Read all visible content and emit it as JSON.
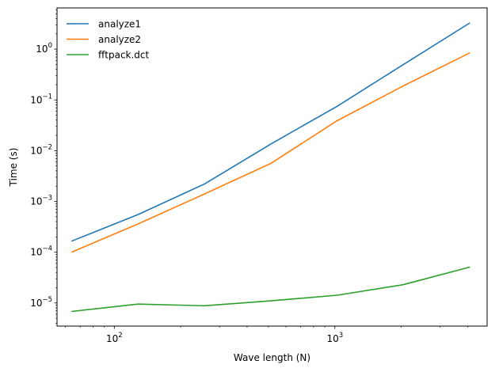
{
  "chart_data": {
    "type": "line",
    "title": "",
    "xlabel": "Wave length (N)",
    "ylabel": "Time (s)",
    "xscale": "log",
    "yscale": "log",
    "xlim": [
      55,
      4900
    ],
    "ylim": [
      3.5e-06,
      6.5
    ],
    "grid": false,
    "legend_position": "top-left",
    "x": [
      64,
      128,
      256,
      512,
      1024,
      2048,
      4096
    ],
    "x_tick_labels": [
      {
        "value": 100,
        "base": "10",
        "exp": "2"
      },
      {
        "value": 1000,
        "base": "10",
        "exp": "3"
      }
    ],
    "y_tick_labels": [
      {
        "value": 1e-05,
        "base": "10",
        "exp": "−5"
      },
      {
        "value": 0.0001,
        "base": "10",
        "exp": "−4"
      },
      {
        "value": 0.001,
        "base": "10",
        "exp": "−3"
      },
      {
        "value": 0.01,
        "base": "10",
        "exp": "−2"
      },
      {
        "value": 0.1,
        "base": "10",
        "exp": "−1"
      },
      {
        "value": 1,
        "base": "10",
        "exp": "0"
      }
    ],
    "series": [
      {
        "name": "analyze1",
        "color": "#1f77b4",
        "values": [
          0.000165,
          0.00055,
          0.0022,
          0.0135,
          0.075,
          0.5,
          3.3
        ]
      },
      {
        "name": "analyze2",
        "color": "#ff7f0e",
        "values": [
          0.0001,
          0.00036,
          0.0014,
          0.0056,
          0.039,
          0.19,
          0.85
        ]
      },
      {
        "name": "fftpack.dct",
        "color": "#2ca02c",
        "values": [
          6.8e-06,
          9.5e-06,
          8.8e-06,
          1.1e-05,
          1.42e-05,
          2.3e-05,
          5.1e-05
        ]
      }
    ]
  }
}
